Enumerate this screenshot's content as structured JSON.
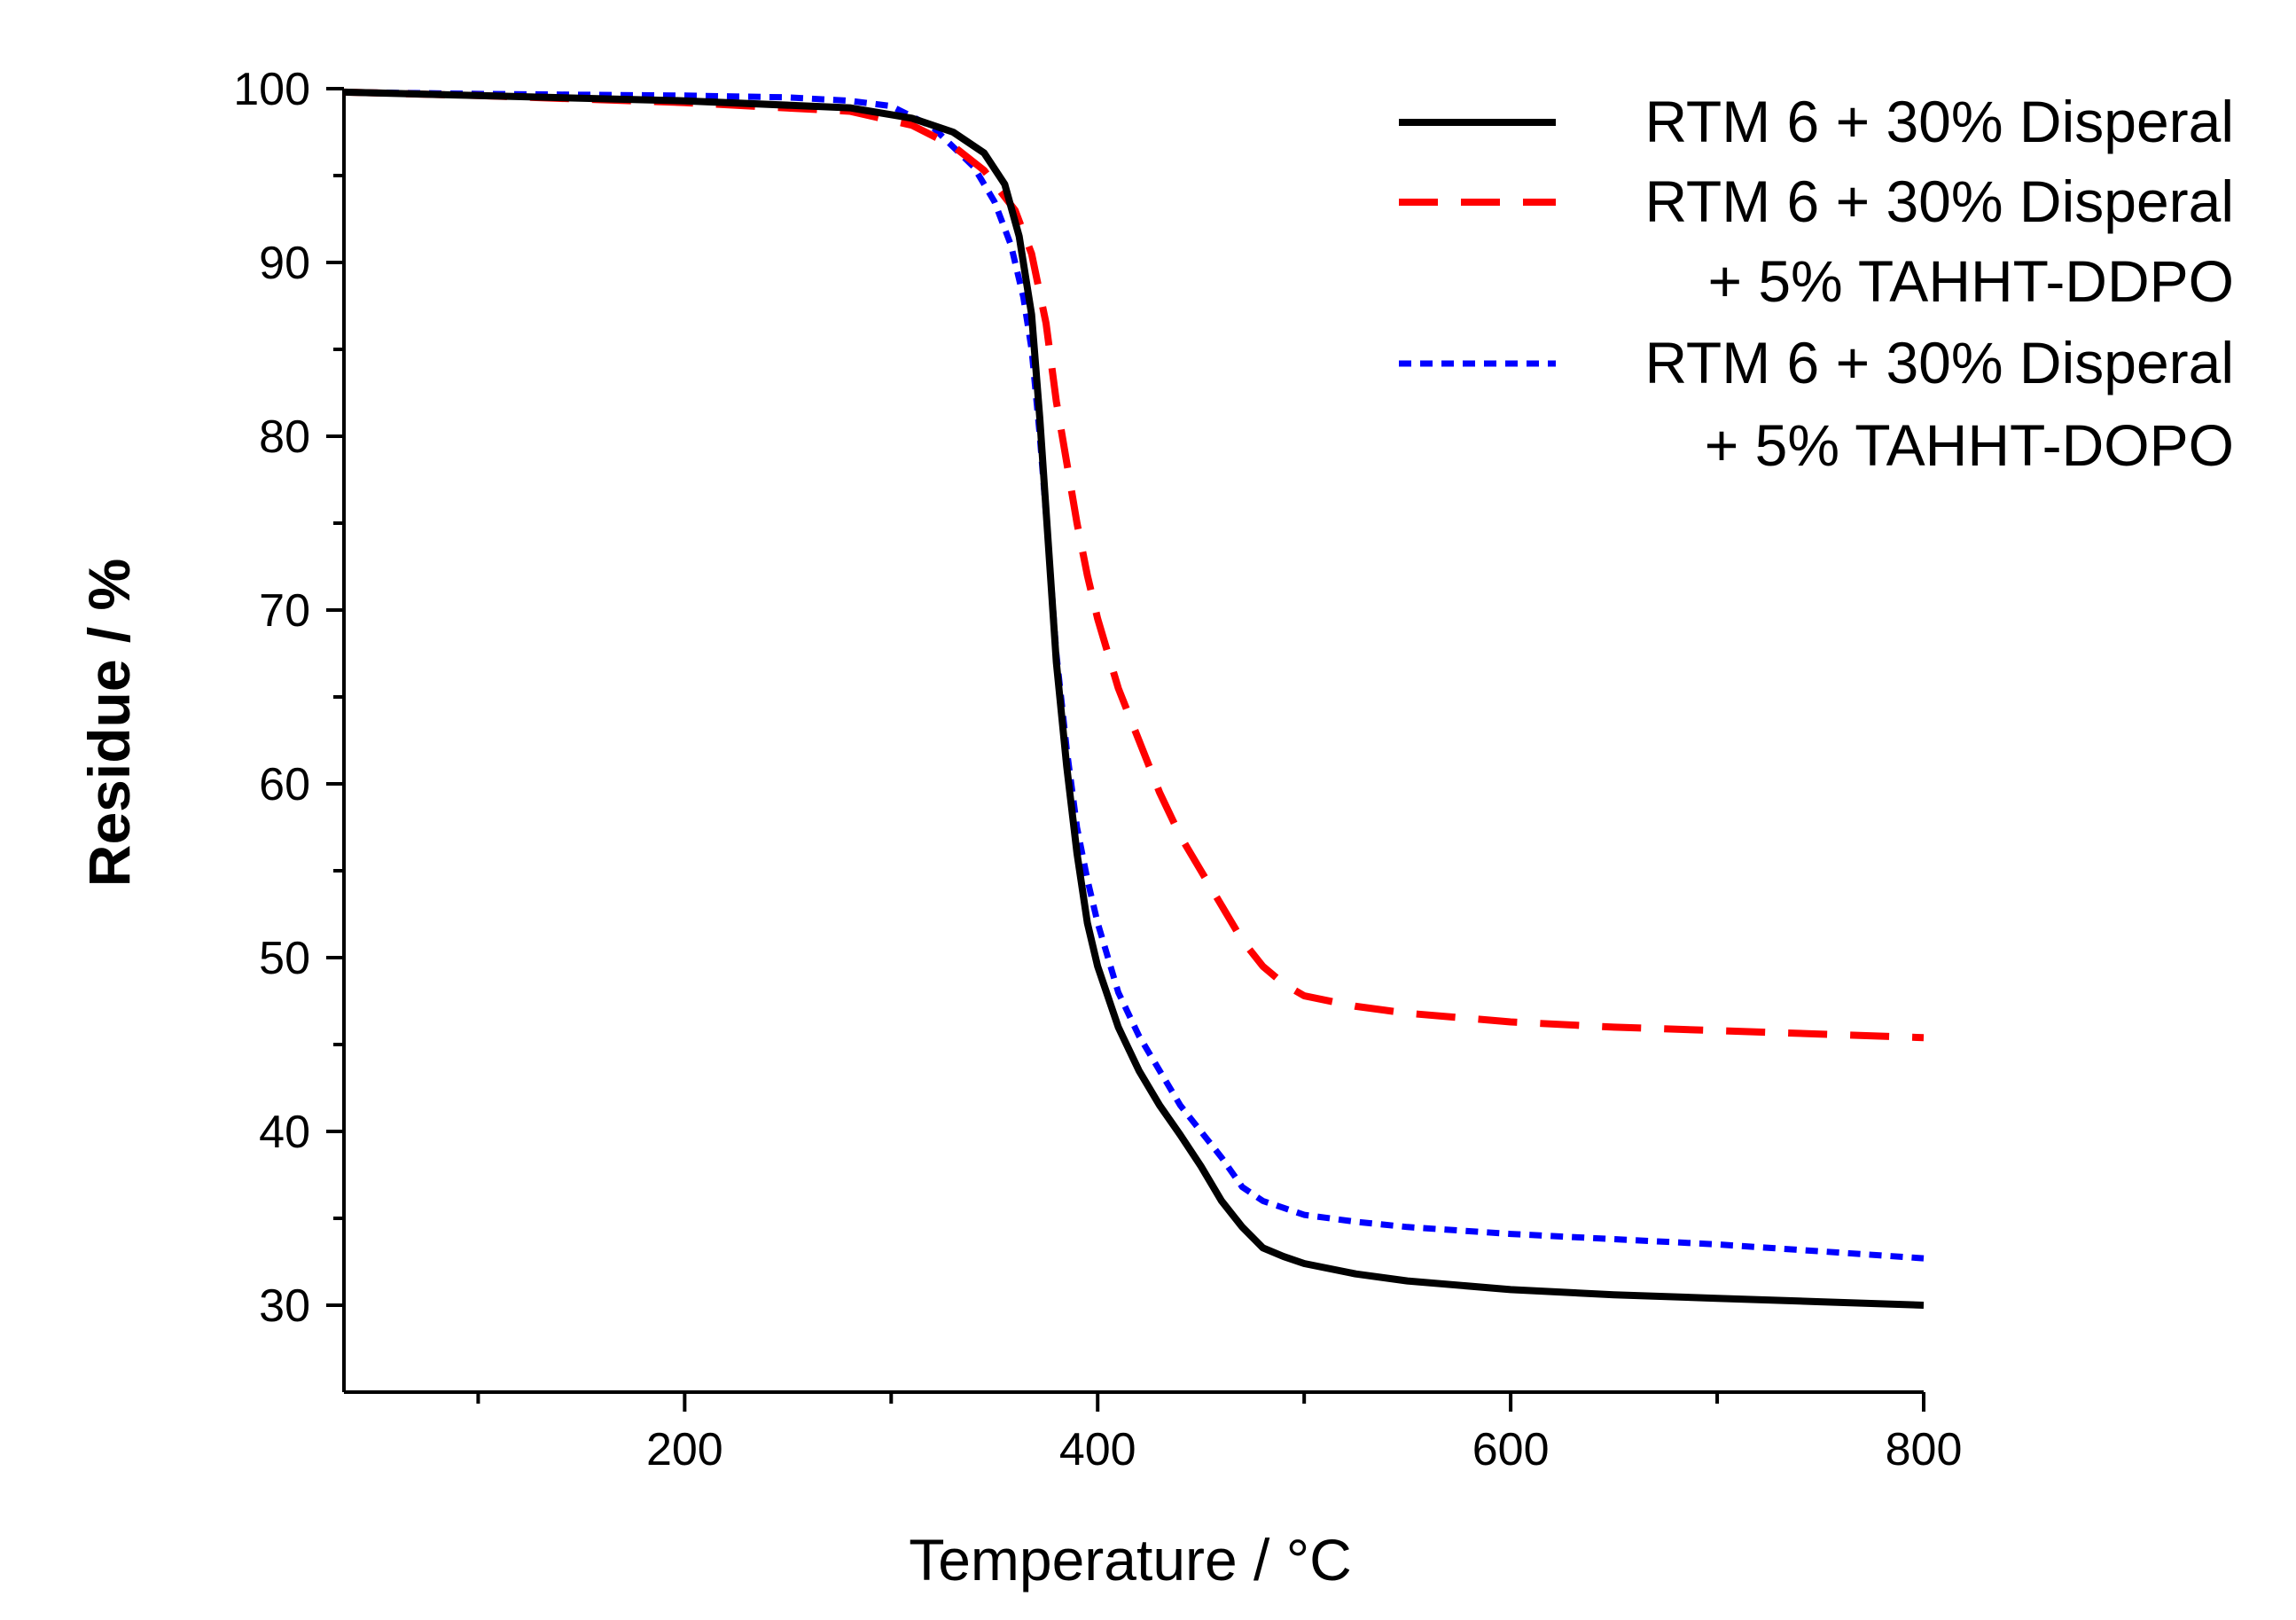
{
  "chart_data": {
    "type": "line",
    "title": "",
    "xlabel": "Temperature / °C",
    "ylabel": "Residue / %",
    "xlim": [
      35,
      800
    ],
    "ylim": [
      25,
      100
    ],
    "xticks": [
      200,
      400,
      600,
      800
    ],
    "xminor": [
      100,
      300,
      500,
      700
    ],
    "yticks": [
      30,
      40,
      50,
      60,
      70,
      80,
      90,
      100
    ],
    "yminor": [
      35,
      45,
      55,
      65,
      75,
      85,
      95
    ],
    "grid": false,
    "legend_position": "top-right",
    "series": [
      {
        "name": "RTM 6 + 30% Disperal",
        "legend_lines": [
          "RTM 6 + 30% Disperal"
        ],
        "color": "#000000",
        "style": "solid",
        "x": [
          35,
          100,
          200,
          280,
          310,
          330,
          345,
          355,
          362,
          368,
          372,
          376,
          380,
          385,
          390,
          395,
          400,
          410,
          420,
          430,
          440,
          450,
          460,
          470,
          480,
          490,
          500,
          525,
          550,
          600,
          650,
          700,
          750,
          800
        ],
        "y": [
          99.8,
          99.6,
          99.3,
          98.9,
          98.3,
          97.5,
          96.3,
          94.5,
          91.5,
          87,
          81,
          74,
          67,
          61,
          56,
          52,
          49.5,
          46,
          43.5,
          41.5,
          39.8,
          38,
          36,
          34.5,
          33.3,
          32.8,
          32.4,
          31.8,
          31.4,
          30.9,
          30.6,
          30.4,
          30.2,
          30
        ]
      },
      {
        "name": "RTM 6 + 30% Disperal + 5% TAHHT-DDPO",
        "legend_lines": [
          "RTM 6 + 30% Disperal",
          "+ 5% TAHHT-DDPO"
        ],
        "color": "#ff0000",
        "style": "dashed",
        "x": [
          35,
          100,
          200,
          280,
          310,
          330,
          345,
          360,
          368,
          375,
          380,
          385,
          390,
          395,
          400,
          410,
          420,
          430,
          440,
          450,
          460,
          470,
          480,
          490,
          500,
          525,
          550,
          600,
          650,
          700,
          750,
          800
        ],
        "y": [
          99.8,
          99.6,
          99.2,
          98.7,
          97.9,
          96.7,
          95.3,
          93,
          90.5,
          86.5,
          82,
          78.5,
          75,
          72,
          69.5,
          65.5,
          62.5,
          59.5,
          57,
          55,
          53,
          51,
          49.5,
          48.5,
          47.8,
          47.2,
          46.8,
          46.3,
          46,
          45.8,
          45.6,
          45.4
        ]
      },
      {
        "name": "RTM 6 + 30% Disperal + 5% TAHHT-DOPO",
        "legend_lines": [
          "RTM 6 + 30% Disperal",
          "+ 5% TAHHT-DOPO"
        ],
        "color": "#0000ff",
        "style": "dotted",
        "x": [
          35,
          100,
          200,
          250,
          280,
          300,
          320,
          340,
          350,
          358,
          364,
          368,
          372,
          376,
          380,
          385,
          390,
          395,
          400,
          410,
          420,
          430,
          440,
          450,
          460,
          470,
          480,
          490,
          500,
          525,
          550,
          600,
          650,
          700,
          750,
          800
        ],
        "y": [
          99.8,
          99.7,
          99.6,
          99.5,
          99.3,
          99,
          97.8,
          95.5,
          93.5,
          91,
          88,
          85,
          80,
          74,
          67.5,
          62,
          57.5,
          54.5,
          52,
          48,
          45.5,
          43.5,
          41.5,
          40,
          38.5,
          36.8,
          36,
          35.6,
          35.2,
          34.8,
          34.5,
          34.1,
          33.8,
          33.5,
          33.1,
          32.7
        ]
      }
    ]
  }
}
